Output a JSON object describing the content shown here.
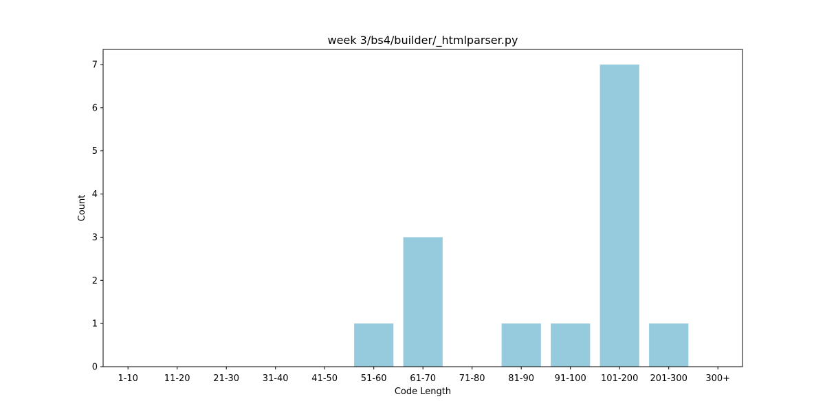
{
  "chart_data": {
    "type": "bar",
    "title": "week 3/bs4/builder/_htmlparser.py",
    "xlabel": "Code Length",
    "ylabel": "Count",
    "categories": [
      "1-10",
      "11-20",
      "21-30",
      "31-40",
      "41-50",
      "51-60",
      "61-70",
      "71-80",
      "81-90",
      "91-100",
      "101-200",
      "201-300",
      "300+"
    ],
    "values": [
      0,
      0,
      0,
      0,
      0,
      1,
      3,
      0,
      1,
      1,
      7,
      1,
      0
    ],
    "ylim": [
      0,
      7.35
    ],
    "yticks": [
      "0",
      "1",
      "2",
      "3",
      "4",
      "5",
      "6",
      "7"
    ],
    "bar_color": "#96cadd",
    "grid": false,
    "legend": "none"
  }
}
